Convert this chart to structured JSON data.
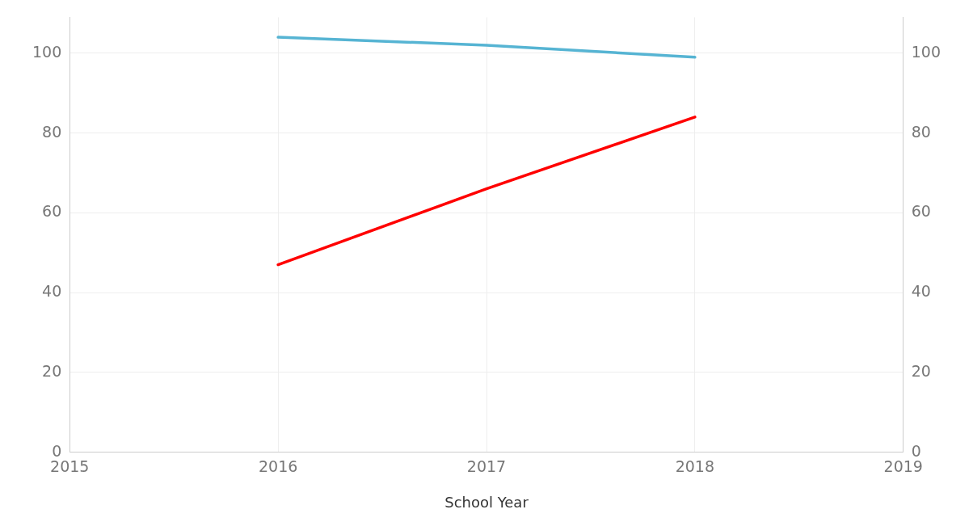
{
  "chart_data": {
    "type": "line",
    "xlabel": "School Year",
    "x": [
      2016,
      2017,
      2018
    ],
    "series": [
      {
        "color": "#56b4d3",
        "values": [
          104,
          102,
          99
        ]
      },
      {
        "color": "#ff0000",
        "values": [
          47,
          66,
          84
        ]
      }
    ],
    "xlim": [
      2015,
      2019
    ],
    "xticks": [
      2015,
      2016,
      2017,
      2018,
      2019
    ],
    "ylim": [
      0,
      109
    ],
    "yticks": [
      0,
      20,
      40,
      60,
      80,
      100
    ],
    "y2lim": [
      0,
      109
    ],
    "y2ticks": [
      0,
      20,
      40,
      60,
      80,
      100
    ],
    "grid": true,
    "legend": false
  }
}
